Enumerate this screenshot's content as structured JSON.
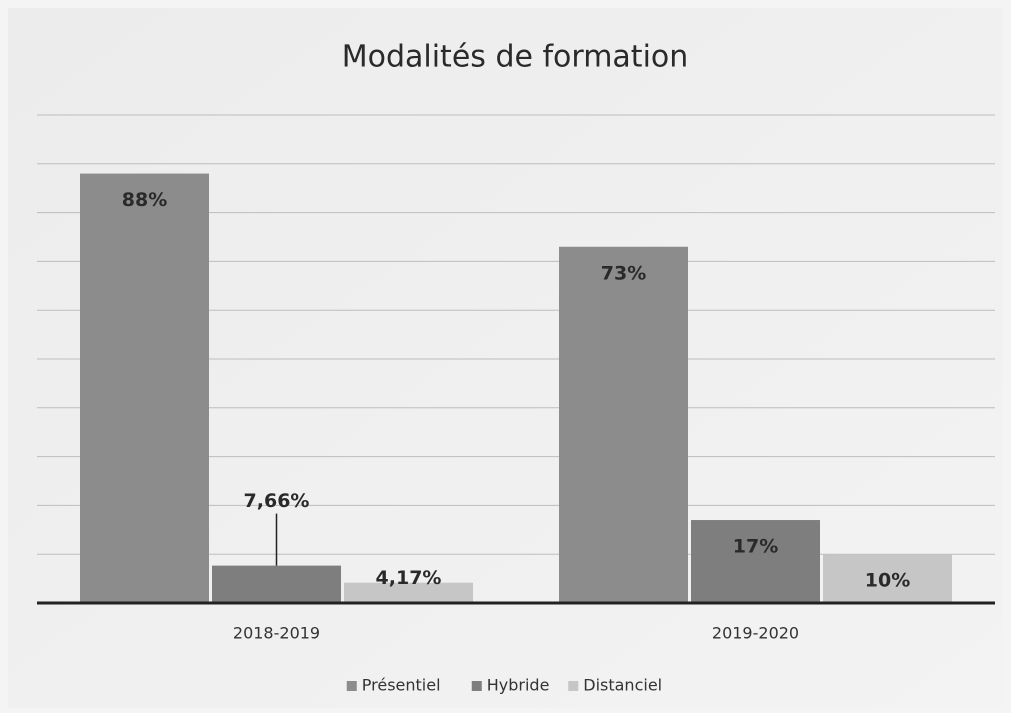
{
  "chart_data": {
    "type": "bar",
    "title": "Modalités de formation",
    "categories": [
      "2018-2019",
      "2019-2020"
    ],
    "series": [
      {
        "name": "Présentiel",
        "color": "#8c8c8c",
        "values": [
          88,
          73
        ],
        "value_labels": [
          "88%",
          "73%"
        ]
      },
      {
        "name": "Hybride",
        "color": "#7e7e7e",
        "values": [
          7.66,
          17
        ],
        "value_labels": [
          "7,66%",
          "17%"
        ]
      },
      {
        "name": "Distanciel",
        "color": "#c6c6c6",
        "values": [
          4.17,
          10
        ],
        "value_labels": [
          "4,17%",
          "10%"
        ]
      }
    ],
    "ylim": [
      0,
      100
    ],
    "yticks": [
      0,
      10,
      20,
      30,
      40,
      50,
      60,
      70,
      80,
      90,
      100
    ],
    "grid": true,
    "legend": "bottom"
  }
}
